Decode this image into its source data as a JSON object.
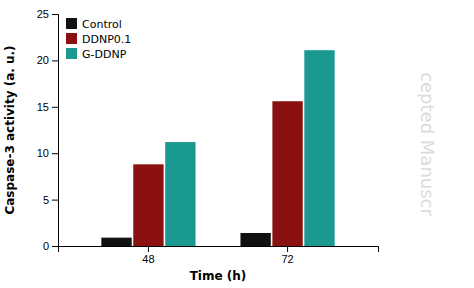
{
  "chart_data": {
    "type": "bar",
    "xlabel": "Time (h)",
    "ylabel": "Caspase-3 activity (a. u.)",
    "categories": [
      "48",
      "72"
    ],
    "series": [
      {
        "name": "Control",
        "color": "#111111",
        "values": [
          0.9,
          1.4
        ]
      },
      {
        "name": "DDNP0.1",
        "color": "#8B1010",
        "values": [
          8.8,
          15.6
        ]
      },
      {
        "name": "G-DDNP",
        "color": "#1A9990",
        "values": [
          11.2,
          21.1
        ]
      }
    ],
    "ylim": [
      0,
      25
    ],
    "yticks": [
      0,
      5,
      10,
      15,
      20,
      25
    ],
    "legend": "upper left",
    "grid": false,
    "annotations": [
      {
        "text": "cepted Manuscr",
        "color": "#cccccc"
      }
    ]
  }
}
